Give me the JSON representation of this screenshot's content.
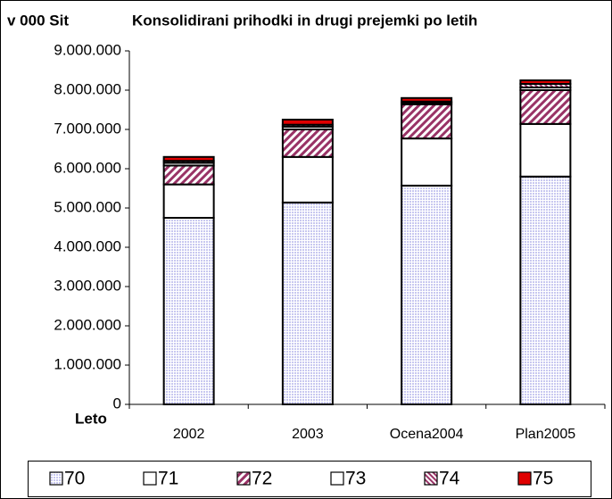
{
  "chart_data": {
    "type": "stacked_bar",
    "title": "Konsolidirani prihodki in drugi prejemki po letih",
    "y_label": "v 000 Sit",
    "x_label": "Leto",
    "categories": [
      "2002",
      "2003",
      "Ocena2004",
      "Plan2005"
    ],
    "series": [
      {
        "name": "70",
        "color": "#c8c8f0",
        "pattern": "dots",
        "values": [
          4750000,
          5140000,
          5570000,
          5800000
        ]
      },
      {
        "name": "71",
        "color": "#ffffff",
        "pattern": "solid",
        "values": [
          850000,
          1160000,
          1200000,
          1340000
        ]
      },
      {
        "name": "72",
        "color": "#993366",
        "pattern": "hatch",
        "values": [
          480000,
          700000,
          870000,
          860000
        ]
      },
      {
        "name": "73",
        "color": "#ffffff",
        "pattern": "solid",
        "values": [
          70000,
          70000,
          40000,
          70000
        ]
      },
      {
        "name": "74",
        "color": "#993366",
        "pattern": "hatch-fine",
        "values": [
          50000,
          50000,
          30000,
          90000
        ]
      },
      {
        "name": "75",
        "color": "#e00000",
        "pattern": "solid",
        "values": [
          100000,
          130000,
          90000,
          90000
        ]
      }
    ],
    "ylim": [
      0,
      9000000
    ],
    "yticks": [
      0,
      {
        "value": 1000000,
        "label": "1.000.000"
      },
      {
        "value": 2000000,
        "label": "2.000.000"
      },
      {
        "value": 3000000,
        "label": "3.000.000"
      },
      {
        "value": 4000000,
        "label": "4.000.000"
      },
      {
        "value": 5000000,
        "label": "5.000.000"
      },
      {
        "value": 6000000,
        "label": "6.000.000"
      },
      {
        "value": 7000000,
        "label": "7.000.000"
      },
      {
        "value": 8000000,
        "label": "8.000.000"
      },
      {
        "value": 9000000,
        "label": "9.000.000"
      }
    ],
    "grid": false,
    "legend": "bottom"
  }
}
